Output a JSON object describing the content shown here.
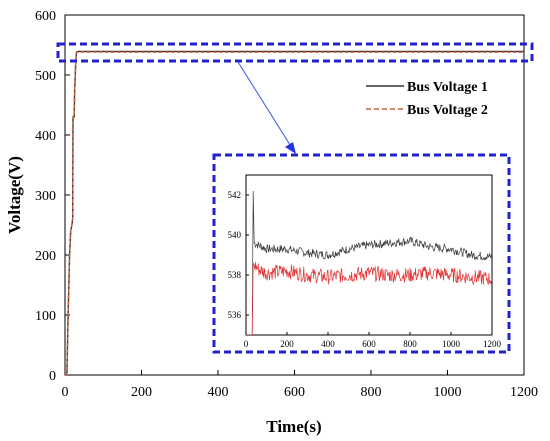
{
  "chart_data": [
    {
      "type": "line",
      "xlabel": "Time(s)",
      "ylabel": "Voltage(V)",
      "xlim": [
        0,
        1200
      ],
      "ylim": [
        0,
        600
      ],
      "xticks": [
        0,
        200,
        400,
        600,
        800,
        1000,
        1200
      ],
      "yticks": [
        0,
        100,
        200,
        300,
        400,
        500,
        600
      ],
      "legend_position": "right",
      "series": [
        {
          "name": "Bus Voltage 1",
          "color": "#333333",
          "style": "solid",
          "x": [
            0,
            5,
            8,
            12,
            15,
            18,
            20,
            21,
            24,
            25,
            28,
            30,
            35,
            40,
            60,
            100,
            200,
            400,
            600,
            800,
            1000,
            1200
          ],
          "y": [
            0,
            0,
            100,
            200,
            240,
            250,
            260,
            430,
            430,
            470,
            520,
            538,
            539.5,
            539.2,
            539.4,
            539.3,
            539.3,
            539.3,
            539.3,
            539.3,
            539.3,
            539.3
          ]
        },
        {
          "name": "Bus Voltage 2",
          "color": "#c8643c",
          "style": "dashed",
          "x": [
            0,
            5,
            8,
            12,
            15,
            18,
            20,
            21,
            24,
            25,
            28,
            30,
            35,
            40,
            60,
            100,
            200,
            400,
            600,
            800,
            1000,
            1200
          ],
          "y": [
            0,
            0,
            100,
            200,
            240,
            250,
            260,
            430,
            430,
            470,
            520,
            537,
            538.5,
            538.3,
            538.2,
            538.1,
            538.0,
            538.0,
            538.0,
            538.0,
            538.0,
            538.0
          ]
        }
      ]
    },
    {
      "type": "line",
      "inset": true,
      "xlim": [
        0,
        1200
      ],
      "ylim": [
        535,
        543
      ],
      "xticks": [
        0,
        200,
        400,
        600,
        800,
        1000,
        1200
      ],
      "yticks": [
        536,
        538,
        540,
        542
      ],
      "series": [
        {
          "name": "Bus Voltage 1",
          "color": "#3a3a3a",
          "x": [
            0,
            30,
            35,
            40,
            60,
            80,
            100,
            200,
            300,
            400,
            500,
            600,
            700,
            800,
            900,
            1000,
            1100,
            1200
          ],
          "y": [
            535,
            535,
            542.2,
            539.6,
            539.5,
            539.4,
            539.3,
            539.3,
            539.1,
            539.0,
            539.3,
            539.5,
            539.6,
            539.7,
            539.4,
            539.3,
            539.0,
            538.9
          ]
        },
        {
          "name": "Bus Voltage 2",
          "color": "#e03030",
          "x": [
            0,
            30,
            35,
            40,
            60,
            80,
            100,
            200,
            300,
            400,
            500,
            600,
            700,
            800,
            900,
            1000,
            1100,
            1200
          ],
          "y": [
            535,
            535,
            538.6,
            538.5,
            538.3,
            538.2,
            538.1,
            538.2,
            538.0,
            537.9,
            538.0,
            538.1,
            538.0,
            538.0,
            538.1,
            538.0,
            537.9,
            537.8
          ]
        }
      ]
    }
  ]
}
